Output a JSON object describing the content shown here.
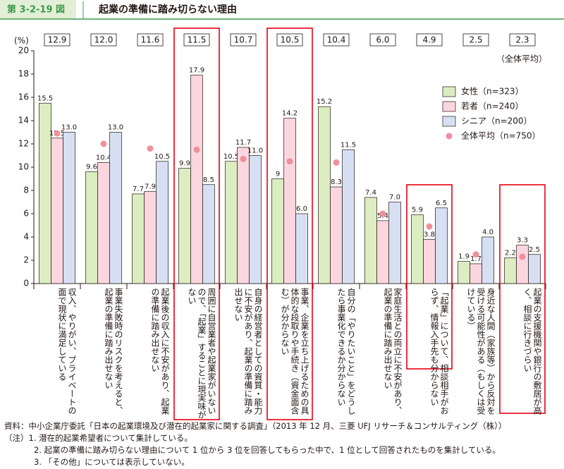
{
  "header": {
    "label": "第 3-2-19 図",
    "title": "起業の準備に踏み切らない理由"
  },
  "chart_data": {
    "type": "bar",
    "y_label": "(%)",
    "average_note": "（全体平均）",
    "categories": [
      "収入、やりがい、プライベートの面で現状に満足している",
      "事業失敗時のリスクを考えると、起業の準備に踏み出せない",
      "起業後の収入に不安があり、起業の準備に踏み出せない",
      "周囲に自営業者や起業家がいないので、「起業」することに現実味がない",
      "自身の経営者としての資質・能力に不安があり、起業の準備に踏み出せない",
      "事業、企業を立ち上げるための具体的な段取りや手続き（資金面含む）が分からない",
      "自分の「やりたいこと」をどうしたら事業化できるか分からない",
      "家庭生活との両立に不安があり、起業の準備に踏み出せない",
      "「起業」について、相談相手がおらず、情報入手先も分からない",
      "身近な人間（家族等）から反対を受ける可能性がある（もしくは受けている）",
      "起業の支援機関や銀行の敷居が高く、相談に行きづらい"
    ],
    "series": [
      {
        "name": "女性（n=323）",
        "color": "#dcedc1",
        "values": [
          15.5,
          9.6,
          7.7,
          9.9,
          10.5,
          9.0,
          15.2,
          7.4,
          5.9,
          1.9,
          2.2
        ]
      },
      {
        "name": "若者（n=240）",
        "color": "#fbd6de",
        "values": [
          12.5,
          10.4,
          7.9,
          17.9,
          11.7,
          14.2,
          8.3,
          5.4,
          3.8,
          1.7,
          3.3
        ]
      },
      {
        "name": "シニア（n=200）",
        "color": "#d7e0f2",
        "values": [
          13.0,
          13.0,
          10.5,
          8.5,
          11.0,
          6.0,
          11.5,
          7.0,
          6.5,
          4.0,
          2.5
        ],
        "value_labels": [
          "13.0",
          "13.0",
          "10.5",
          "8.5",
          "11.0",
          "6.0",
          "11.5",
          "7.0",
          "6.5",
          "4.0",
          "2.5"
        ]
      },
      {
        "name": "全体平均（n=750）",
        "color": "#f0909c",
        "marker": "dot",
        "values": [
          12.9,
          12.0,
          11.6,
          11.5,
          10.7,
          10.5,
          10.4,
          6.0,
          4.9,
          2.5,
          2.3
        ],
        "value_labels": [
          "12.9",
          "12.0",
          "11.6",
          "11.5",
          "10.7",
          "10.5",
          "10.4",
          "6.0",
          "4.9",
          "2.5",
          "2.3"
        ]
      }
    ],
    "ylim": [
      0,
      20
    ],
    "yticks": [
      0,
      2,
      4,
      6,
      8,
      10,
      12,
      14,
      16,
      18,
      20
    ],
    "legend": "upper right"
  },
  "notes": [
    "資料：中小企業庁委託「日本の起業環境及び潜在的起業家に関する調査」（2013 年 12 月、三菱 UFJ リサーチ＆コンサルティング（株））",
    "（注）1.  潜在的起業希望者について集計している。",
    "2.  起業の準備に踏み切らない理由について 1 位から 3 位を回答してもらった中で、1 位として回答されたものを集計している。",
    "3.  「その他」については表示していない。"
  ]
}
